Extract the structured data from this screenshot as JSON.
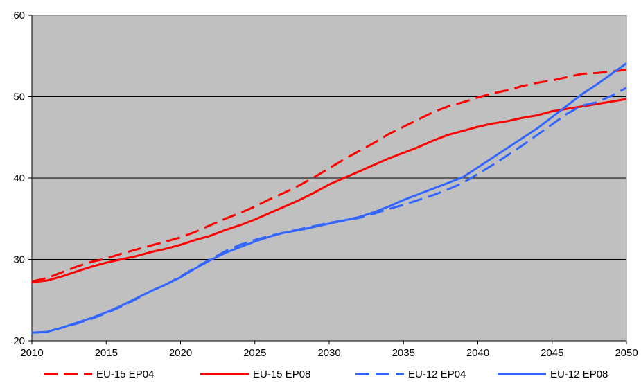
{
  "chart_data": {
    "type": "line",
    "title": "",
    "xlabel": "",
    "ylabel": "",
    "xlim": [
      2010,
      2050
    ],
    "ylim": [
      20,
      60
    ],
    "x_ticks": [
      "2010",
      "2015",
      "2020",
      "2025",
      "2030",
      "2035",
      "2040",
      "2045",
      "2050"
    ],
    "y_ticks": [
      "20",
      "30",
      "40",
      "50",
      "60"
    ],
    "grid": "horizontal",
    "plot_background": "#c0c0c0",
    "legend_position": "bottom",
    "series": [
      {
        "name": "EU-15 EP04",
        "color": "#ff0000",
        "dash": "dashed",
        "x": [
          2010,
          2011,
          2012,
          2013,
          2014,
          2015,
          2016,
          2017,
          2018,
          2019,
          2020,
          2021,
          2022,
          2023,
          2024,
          2025,
          2026,
          2027,
          2028,
          2029,
          2030,
          2031,
          2032,
          2033,
          2034,
          2035,
          2036,
          2037,
          2038,
          2039,
          2040,
          2041,
          2042,
          2043,
          2044,
          2045,
          2046,
          2047,
          2048,
          2049,
          2050
        ],
        "y": [
          27.3,
          27.7,
          28.4,
          29.1,
          29.7,
          30.1,
          30.7,
          31.2,
          31.7,
          32.2,
          32.7,
          33.4,
          34.2,
          35.0,
          35.7,
          36.5,
          37.4,
          38.2,
          39.1,
          40.1,
          41.2,
          42.3,
          43.3,
          44.3,
          45.4,
          46.3,
          47.2,
          48.1,
          48.8,
          49.3,
          49.9,
          50.4,
          50.8,
          51.3,
          51.7,
          52.0,
          52.4,
          52.8,
          52.9,
          53.1,
          53.3
        ]
      },
      {
        "name": "EU-15 EP08",
        "color": "#ff0000",
        "dash": "solid",
        "x": [
          2010,
          2011,
          2012,
          2013,
          2014,
          2015,
          2016,
          2017,
          2018,
          2019,
          2020,
          2021,
          2022,
          2023,
          2024,
          2025,
          2026,
          2027,
          2028,
          2029,
          2030,
          2031,
          2032,
          2033,
          2034,
          2035,
          2036,
          2037,
          2038,
          2039,
          2040,
          2041,
          2042,
          2043,
          2044,
          2045,
          2046,
          2047,
          2048,
          2049,
          2050
        ],
        "y": [
          27.2,
          27.4,
          27.9,
          28.5,
          29.1,
          29.6,
          30.0,
          30.4,
          30.9,
          31.3,
          31.8,
          32.4,
          32.9,
          33.6,
          34.2,
          34.9,
          35.7,
          36.5,
          37.3,
          38.2,
          39.2,
          40.0,
          40.8,
          41.6,
          42.4,
          43.1,
          43.8,
          44.6,
          45.3,
          45.8,
          46.3,
          46.7,
          47.0,
          47.4,
          47.7,
          48.2,
          48.5,
          48.8,
          49.1,
          49.4,
          49.7
        ]
      },
      {
        "name": "EU-12 EP04",
        "color": "#3366ff",
        "dash": "dashed",
        "x": [
          2010,
          2011,
          2012,
          2013,
          2014,
          2015,
          2016,
          2017,
          2018,
          2019,
          2020,
          2021,
          2022,
          2023,
          2024,
          2025,
          2026,
          2027,
          2028,
          2029,
          2030,
          2031,
          2032,
          2033,
          2034,
          2035,
          2036,
          2037,
          2038,
          2039,
          2040,
          2041,
          2042,
          2043,
          2044,
          2045,
          2046,
          2047,
          2048,
          2049,
          2050
        ],
        "y": [
          21.0,
          21.1,
          21.6,
          22.1,
          22.7,
          23.4,
          24.2,
          25.1,
          26.1,
          26.9,
          27.9,
          29.0,
          30.0,
          31.0,
          31.8,
          32.4,
          32.9,
          33.3,
          33.7,
          34.1,
          34.5,
          34.8,
          35.1,
          35.6,
          36.2,
          36.7,
          37.3,
          37.9,
          38.6,
          39.4,
          40.5,
          41.6,
          42.8,
          44.0,
          45.3,
          46.6,
          47.9,
          48.9,
          49.3,
          50.1,
          51.1
        ]
      },
      {
        "name": "EU-12 EP08",
        "color": "#3366ff",
        "dash": "solid",
        "x": [
          2010,
          2011,
          2012,
          2013,
          2014,
          2015,
          2016,
          2017,
          2018,
          2019,
          2020,
          2021,
          2022,
          2023,
          2024,
          2025,
          2026,
          2027,
          2028,
          2029,
          2030,
          2031,
          2032,
          2033,
          2034,
          2035,
          2036,
          2037,
          2038,
          2039,
          2040,
          2041,
          2042,
          2043,
          2044,
          2045,
          2046,
          2047,
          2048,
          2049,
          2050
        ],
        "y": [
          21.0,
          21.1,
          21.6,
          22.2,
          22.8,
          23.5,
          24.3,
          25.2,
          26.1,
          26.9,
          27.8,
          28.9,
          29.9,
          30.8,
          31.5,
          32.2,
          32.8,
          33.3,
          33.6,
          34.0,
          34.4,
          34.8,
          35.2,
          35.8,
          36.5,
          37.3,
          38.0,
          38.7,
          39.4,
          40.1,
          41.3,
          42.5,
          43.7,
          44.9,
          46.1,
          47.5,
          48.9,
          50.3,
          51.5,
          52.8,
          54.1
        ]
      }
    ]
  }
}
